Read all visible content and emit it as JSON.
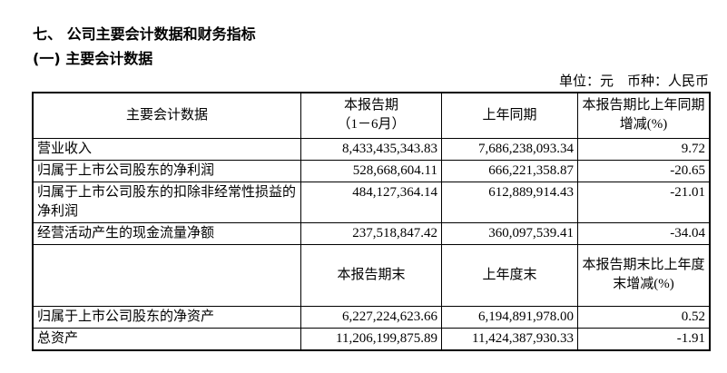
{
  "heading": "七、 公司主要会计数据和财务指标",
  "subheading": "(一) 主要会计数据",
  "unit": "单位：元　币种：人民币",
  "header1": [
    "主要会计数据",
    "本报告期\n（1－6月）",
    "上年同期",
    "本报告期比上年同期增减(%)"
  ],
  "rows1": [
    [
      "营业收入",
      "8,433,435,343.83",
      "7,686,238,093.34",
      "9.72"
    ],
    [
      "归属于上市公司股东的净利润",
      "528,668,604.11",
      "666,221,358.87",
      "-20.65"
    ],
    [
      "归属于上市公司股东的扣除非经常性损益的净利润",
      "484,127,364.14",
      "612,889,914.43",
      "-21.01"
    ],
    [
      "经营活动产生的现金流量净额",
      "237,518,847.42",
      "360,097,539.41",
      "-34.04"
    ]
  ],
  "header2": [
    "",
    "本报告期末",
    "上年度末",
    "本报告期末比上年度末增减(%)"
  ],
  "rows2": [
    [
      "归属于上市公司股东的净资产",
      "6,227,224,623.66",
      "6,194,891,978.00",
      "0.52"
    ],
    [
      "总资产",
      "11,206,199,875.89",
      "11,424,387,930.33",
      "-1.91"
    ]
  ]
}
